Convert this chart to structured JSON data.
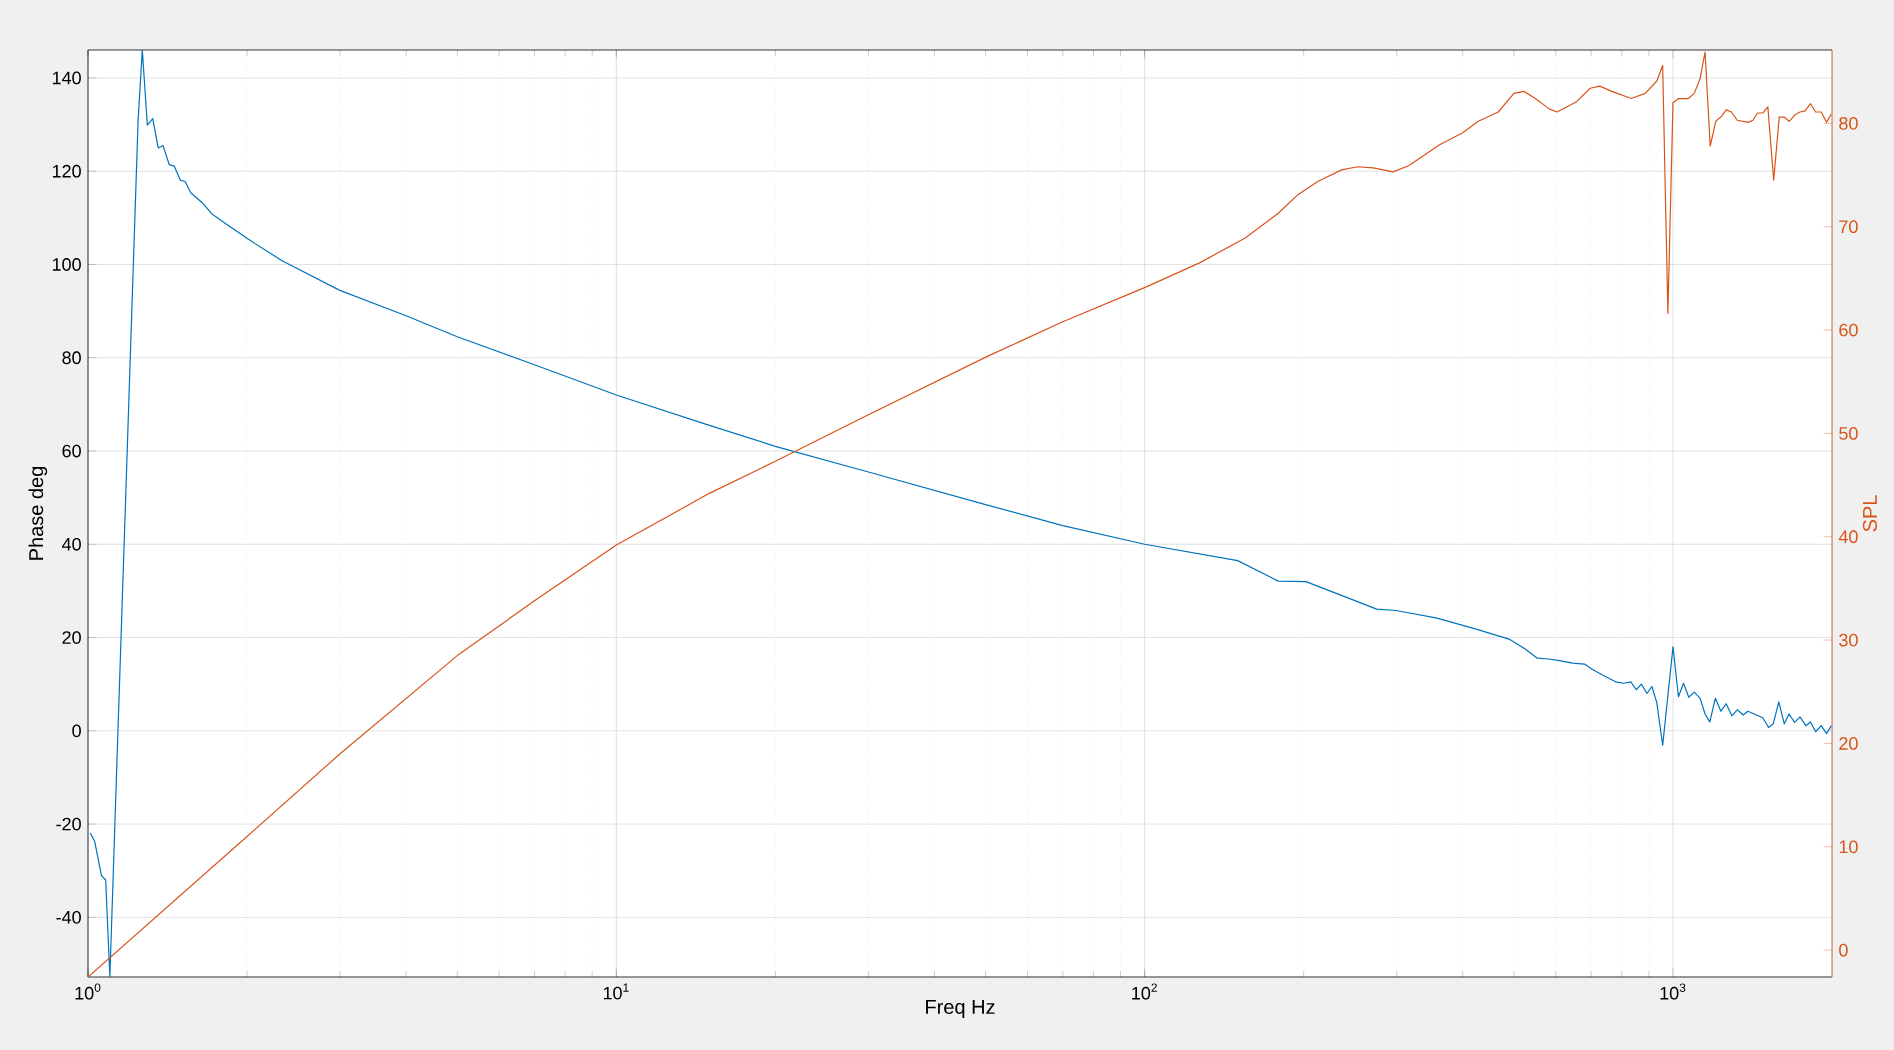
{
  "chart_data": {
    "type": "line",
    "xlabel": "Freq Hz",
    "ylabel": "Phase deg",
    "y2label": "SPL",
    "log": "x",
    "grid": true,
    "xlim": [
      1,
      2000
    ],
    "ylim": [
      -52.8,
      146
    ],
    "y2lim": [
      -2.6,
      87.1
    ],
    "xticks": [
      {
        "value": 1,
        "label": "10$^{0}$"
      },
      {
        "value": 10,
        "label": "10$^{1}$"
      },
      {
        "value": 100,
        "label": "10$^{2}$"
      },
      {
        "value": 1000,
        "label": "10$^{3}$"
      }
    ],
    "yticks": [
      -40,
      -20,
      0,
      20,
      40,
      60,
      80,
      100,
      120,
      140
    ],
    "y2ticks": [
      0,
      10,
      20,
      30,
      40,
      50,
      60,
      70,
      80
    ],
    "series": [
      {
        "color": "#0072bd",
        "x": [
          1.01,
          1.03,
          1.06,
          1.08,
          1.1,
          1.244,
          1.267,
          1.295,
          1.326,
          1.358,
          1.387,
          1.425,
          1.456,
          1.495,
          1.527,
          1.565,
          1.647,
          1.714,
          1.832,
          2.012,
          2.33,
          2.99,
          4,
          5,
          7,
          10,
          15,
          20,
          30,
          50,
          70,
          100,
          150,
          179,
          202,
          275,
          299,
          356,
          421,
          491,
          526,
          553,
          582,
          613,
          646,
          680,
          703,
          740,
          779,
          807,
          832,
          852,
          871,
          893,
          912,
          932,
          956,
          1000,
          1024,
          1047,
          1071,
          1097,
          1125,
          1150,
          1174,
          1203,
          1232,
          1261,
          1292,
          1323,
          1358,
          1386,
          1479,
          1517,
          1548,
          1586,
          1624,
          1658,
          1699,
          1739,
          1785,
          1821,
          1862,
          1908,
          1953,
          1994
        ],
        "values": [
          -21.9,
          -23.8,
          -31,
          -32,
          -52.7,
          130.9,
          146,
          129.9,
          131.3,
          125,
          125.5,
          121.4,
          121.1,
          118.1,
          117.8,
          115.4,
          113.2,
          110.9,
          108.6,
          105.4,
          100.8,
          94.5,
          89,
          84.5,
          78.5,
          72,
          65.5,
          61,
          55.5,
          48.5,
          44,
          40,
          36.5,
          32.1,
          32,
          26.1,
          25.8,
          24.2,
          21.9,
          19.6,
          17.5,
          15.6,
          15.4,
          15,
          14.5,
          14.3,
          13.2,
          11.8,
          10.5,
          10.2,
          10.5,
          8.8,
          10,
          8,
          9.5,
          6,
          -3.1,
          18,
          7.3,
          10.2,
          7.2,
          8.3,
          7,
          3.6,
          1.9,
          7,
          4.2,
          5.8,
          3.2,
          4.5,
          3.4,
          4.2,
          2.8,
          0.7,
          1.5,
          6.2,
          1.5,
          3.6,
          1.8,
          3,
          1.1,
          1.9,
          -0.2,
          1.1,
          -0.6,
          1.1
        ]
      },
      {
        "color": "#d95319",
        "axis": "y2",
        "x": [
          1,
          2,
          3,
          5,
          7,
          10,
          15,
          20,
          30,
          50.6,
          70,
          101,
          127,
          155,
          179,
          195,
          213,
          236,
          253,
          271,
          295,
          316,
          361,
          400,
          428,
          467,
          500,
          522,
          549,
          583,
          603,
          657,
          697,
          727,
          766,
          834,
          886,
          932,
          956,
          978,
          1000,
          1024,
          1069,
          1097,
          1125,
          1150,
          1176,
          1205,
          1236,
          1261,
          1290,
          1323,
          1388,
          1417,
          1446,
          1479,
          1512,
          1551,
          1589,
          1624,
          1660,
          1700,
          1739,
          1778,
          1821,
          1862,
          1908,
          1953,
          1994
        ],
        "values": [
          -2.6,
          11,
          19,
          28.5,
          33.8,
          39.2,
          44.2,
          47.3,
          51.8,
          57.5,
          60.8,
          64.2,
          66.5,
          68.9,
          71.3,
          73.1,
          74.4,
          75.5,
          75.8,
          75.7,
          75.3,
          75.9,
          77.9,
          79.1,
          80.2,
          81.1,
          82.9,
          83.1,
          82.4,
          81.4,
          81.1,
          82.1,
          83.4,
          83.6,
          83.1,
          82.4,
          82.9,
          84.1,
          85.6,
          61.6,
          82,
          82.4,
          82.4,
          82.9,
          84.3,
          86.9,
          77.8,
          80.2,
          80.7,
          81.3,
          81.1,
          80.3,
          80.1,
          80.3,
          81,
          81,
          81.6,
          74.5,
          80.6,
          80.6,
          80.2,
          80.8,
          81.1,
          81.2,
          81.9,
          81.1,
          81.1,
          80.1,
          80.9
        ]
      }
    ]
  }
}
